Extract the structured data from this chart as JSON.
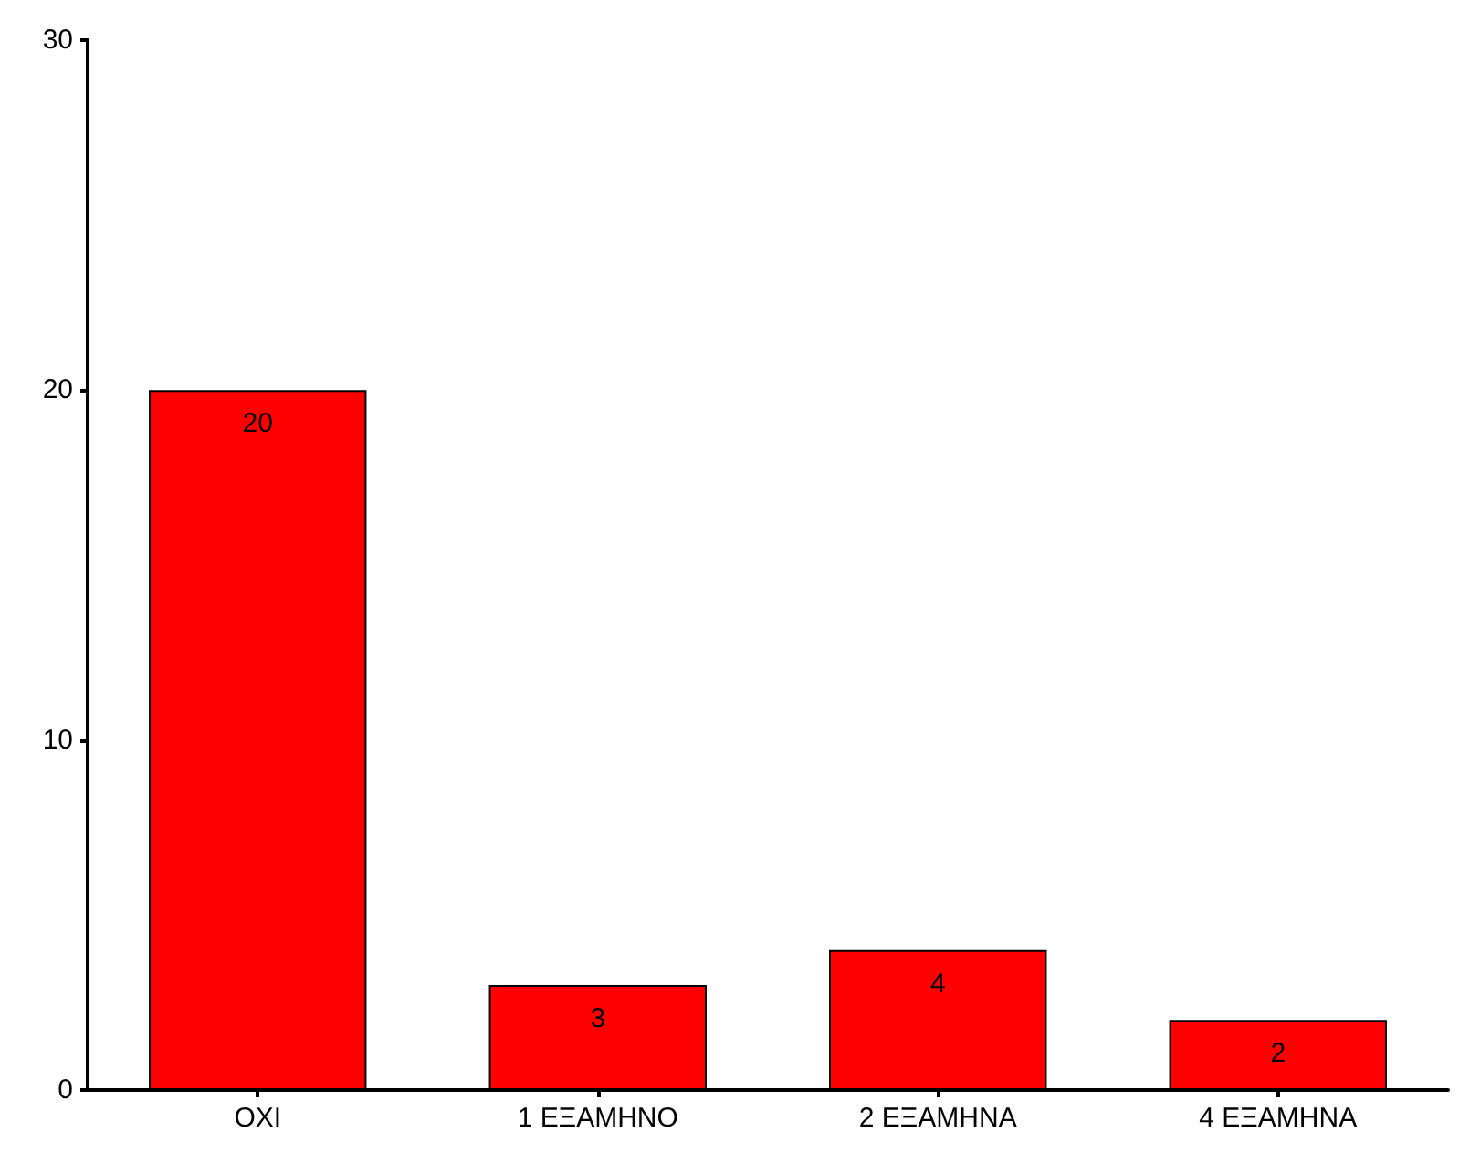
{
  "chart_data": {
    "type": "bar",
    "categories": [
      "ΟΧΙ",
      "1 ΕΞΑΜΗΝΟ",
      "2 ΕΞΑΜΗΝΑ",
      "4 ΕΞΑΜΗΝΑ"
    ],
    "values": [
      20,
      3,
      4,
      2
    ],
    "color": "#ff0000",
    "ylim": [
      0,
      30
    ],
    "yticks": [
      0,
      10,
      20,
      30
    ],
    "grid": false,
    "data_labels": true
  }
}
